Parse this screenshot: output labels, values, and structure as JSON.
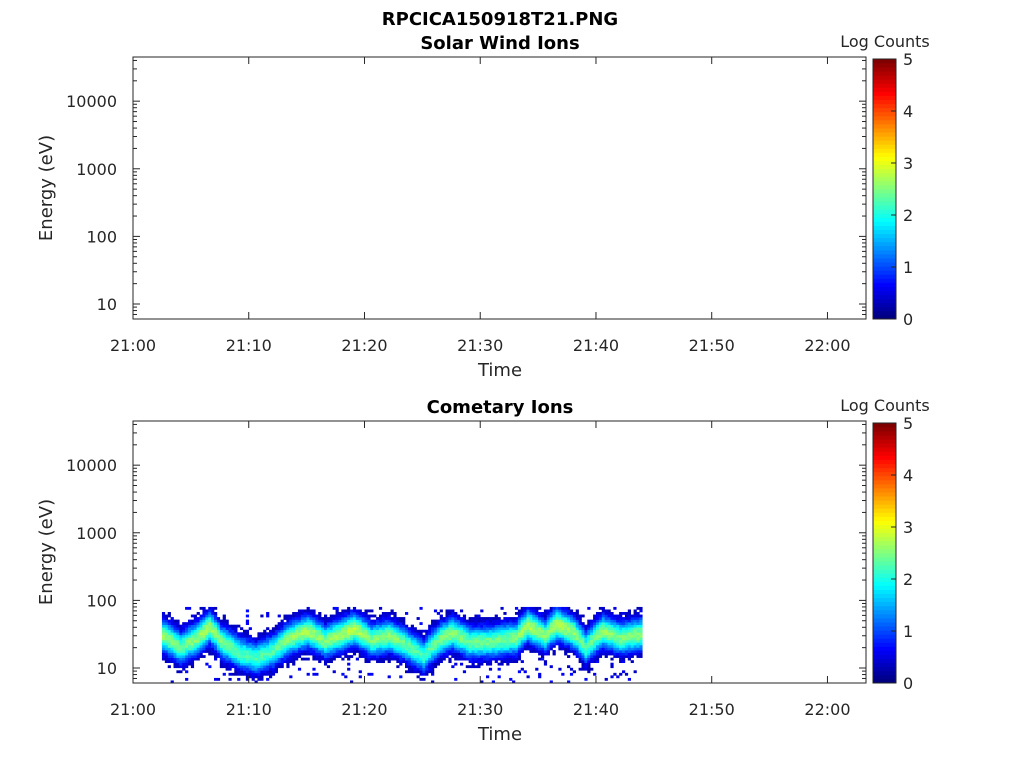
{
  "figure_title": "RPCICA150918T21.PNG",
  "colors": {
    "colormap": "jet",
    "axes": "#262626",
    "background": "#ffffff"
  },
  "chart_data": [
    {
      "type": "heatmap",
      "title": "Solar Wind Ions",
      "xlabel": "Time",
      "ylabel": "Energy (eV)",
      "x_ticks": [
        "21:00",
        "21:10",
        "21:20",
        "21:30",
        "21:40",
        "21:50",
        "22:00"
      ],
      "y_scale": "log",
      "y_ticks": [
        "10",
        "100",
        "1000",
        "10000"
      ],
      "ylim": [
        6,
        45000
      ],
      "colorbar": {
        "label": "Log Counts",
        "range": [
          0,
          5
        ],
        "ticks": [
          "0",
          "1",
          "2",
          "3",
          "4",
          "5"
        ]
      },
      "data_present": false,
      "band": []
    },
    {
      "type": "heatmap",
      "title": "Cometary Ions",
      "xlabel": "Time",
      "ylabel": "Energy (eV)",
      "x_ticks": [
        "21:00",
        "21:10",
        "21:20",
        "21:30",
        "21:40",
        "21:50",
        "22:00"
      ],
      "y_scale": "log",
      "y_ticks": [
        "10",
        "100",
        "1000",
        "10000"
      ],
      "ylim": [
        6,
        45000
      ],
      "colorbar": {
        "label": "Log Counts",
        "range": [
          0,
          5
        ],
        "ticks": [
          "0",
          "1",
          "2",
          "3",
          "4",
          "5"
        ]
      },
      "data_present": true,
      "time_range_min": [
        2.5,
        44
      ],
      "energy_range_eV": [
        6,
        80
      ],
      "band": [
        {
          "t": 2.5,
          "peak_eV": 30,
          "max_log": 2.6
        },
        {
          "t": 4.0,
          "peak_eV": 20,
          "max_log": 2.4
        },
        {
          "t": 5.5,
          "peak_eV": 28,
          "max_log": 2.6
        },
        {
          "t": 6.5,
          "peak_eV": 40,
          "max_log": 2.7
        },
        {
          "t": 7.5,
          "peak_eV": 25,
          "max_log": 2.5
        },
        {
          "t": 9.0,
          "peak_eV": 17,
          "max_log": 2.3
        },
        {
          "t": 10.5,
          "peak_eV": 14,
          "max_log": 2.2
        },
        {
          "t": 12.0,
          "peak_eV": 18,
          "max_log": 2.3
        },
        {
          "t": 13.5,
          "peak_eV": 28,
          "max_log": 2.6
        },
        {
          "t": 15.0,
          "peak_eV": 35,
          "max_log": 2.7
        },
        {
          "t": 16.5,
          "peak_eV": 25,
          "max_log": 2.5
        },
        {
          "t": 18.0,
          "peak_eV": 32,
          "max_log": 2.7
        },
        {
          "t": 19.0,
          "peak_eV": 38,
          "max_log": 2.8
        },
        {
          "t": 20.5,
          "peak_eV": 26,
          "max_log": 2.5
        },
        {
          "t": 22.0,
          "peak_eV": 30,
          "max_log": 2.6
        },
        {
          "t": 23.5,
          "peak_eV": 22,
          "max_log": 2.4
        },
        {
          "t": 25.0,
          "peak_eV": 15,
          "max_log": 2.2
        },
        {
          "t": 26.5,
          "peak_eV": 27,
          "max_log": 2.5
        },
        {
          "t": 27.5,
          "peak_eV": 33,
          "max_log": 2.6
        },
        {
          "t": 29.0,
          "peak_eV": 24,
          "max_log": 2.4
        },
        {
          "t": 31.0,
          "peak_eV": 25,
          "max_log": 2.4
        },
        {
          "t": 33.0,
          "peak_eV": 28,
          "max_log": 2.5
        },
        {
          "t": 34.0,
          "peak_eV": 42,
          "max_log": 2.8
        },
        {
          "t": 35.5,
          "peak_eV": 30,
          "max_log": 2.5
        },
        {
          "t": 36.5,
          "peak_eV": 45,
          "max_log": 2.8
        },
        {
          "t": 38.0,
          "peak_eV": 33,
          "max_log": 2.6
        },
        {
          "t": 39.0,
          "peak_eV": 20,
          "max_log": 2.3
        },
        {
          "t": 40.5,
          "peak_eV": 35,
          "max_log": 2.6
        },
        {
          "t": 42.0,
          "peak_eV": 28,
          "max_log": 2.5
        },
        {
          "t": 44.0,
          "peak_eV": 32,
          "max_log": 2.6
        }
      ]
    }
  ]
}
